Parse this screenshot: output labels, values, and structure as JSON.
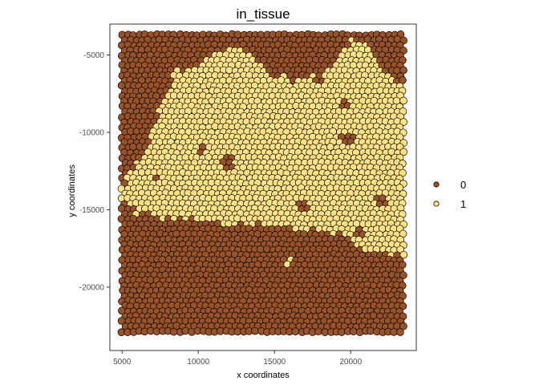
{
  "chart_data": {
    "type": "scatter",
    "title": "in_tissue",
    "xlabel": "x coordinates",
    "ylabel": "y coordinates",
    "xlim": [
      4200,
      24300
    ],
    "ylim": [
      -24100,
      -3000
    ],
    "x_ticks": [
      {
        "value": 5000,
        "label": "5000"
      },
      {
        "value": 10000,
        "label": "10000"
      },
      {
        "value": 15000,
        "label": "15000"
      },
      {
        "value": 20000,
        "label": "20000"
      }
    ],
    "y_ticks": [
      {
        "value": -5000,
        "label": "-5000"
      },
      {
        "value": -10000,
        "label": "-10000"
      },
      {
        "value": -15000,
        "label": "-15000"
      },
      {
        "value": -20000,
        "label": "-20000"
      }
    ],
    "grid": false,
    "legend_position": "right",
    "x_range": [
      5000,
      23500
    ],
    "y_range": [
      -23000,
      -3700
    ],
    "spot_spacing": 380,
    "series": [
      {
        "name": "0",
        "color": "#99532a",
        "region": "outside tissue boundary"
      },
      {
        "name": "1",
        "color": "#ffe386",
        "region": "inside tissue boundary"
      }
    ],
    "tissue_upper_boundary": [
      [
        5000,
        -13500
      ],
      [
        5800,
        -12300
      ],
      [
        6500,
        -11200
      ],
      [
        7000,
        -9500
      ],
      [
        7800,
        -7800
      ],
      [
        8500,
        -6200
      ],
      [
        10200,
        -5500
      ],
      [
        11500,
        -4800
      ],
      [
        12400,
        -4400
      ],
      [
        13200,
        -4600
      ],
      [
        14000,
        -5500
      ],
      [
        15000,
        -6400
      ],
      [
        16000,
        -6500
      ],
      [
        17000,
        -6400
      ],
      [
        18200,
        -6200
      ],
      [
        19200,
        -5000
      ],
      [
        20000,
        -4100
      ],
      [
        21200,
        -4300
      ],
      [
        22000,
        -5700
      ],
      [
        22800,
        -6500
      ],
      [
        23500,
        -6900
      ]
    ],
    "tissue_lower_boundary": [
      [
        5000,
        -14400
      ],
      [
        6000,
        -15300
      ],
      [
        8000,
        -15500
      ],
      [
        9500,
        -15600
      ],
      [
        11000,
        -15800
      ],
      [
        12500,
        -16000
      ],
      [
        14000,
        -15900
      ],
      [
        15500,
        -16000
      ],
      [
        16800,
        -16200
      ],
      [
        18500,
        -16500
      ],
      [
        20000,
        -17000
      ],
      [
        21500,
        -17600
      ],
      [
        22500,
        -17900
      ],
      [
        23500,
        -18100
      ]
    ],
    "patches_outside_tissue": [
      {
        "x": 12000,
        "y": -12000,
        "r": 400
      },
      {
        "x": 10200,
        "y": -11200,
        "r": 350
      },
      {
        "x": 16800,
        "y": -14800,
        "r": 450
      },
      {
        "x": 19800,
        "y": -10400,
        "r": 420
      },
      {
        "x": 22000,
        "y": -14500,
        "r": 380
      },
      {
        "x": 20600,
        "y": -16500,
        "r": 350
      },
      {
        "x": 18000,
        "y": -6600,
        "r": 300
      },
      {
        "x": 19700,
        "y": -8300,
        "r": 300
      },
      {
        "x": 7200,
        "y": -13000,
        "r": 300
      }
    ],
    "patches_inside_tissue": [
      {
        "x": 16000,
        "y": -18400,
        "r": 280
      }
    ],
    "legend_entries": [
      {
        "key": "0",
        "label": "0",
        "color": "#99532a"
      },
      {
        "key": "1",
        "label": "1",
        "color": "#ffe386"
      }
    ]
  }
}
